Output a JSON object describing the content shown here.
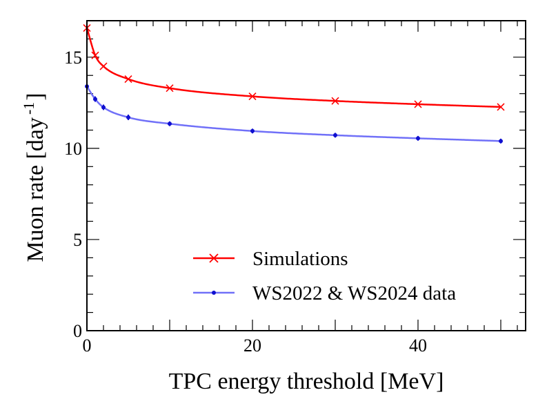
{
  "chart_data": {
    "type": "line",
    "xlabel": "TPC energy threshold [MeV]",
    "ylabel": "Muon rate [day",
    "ylabel_sup": "-1",
    "ylabel_close": "]",
    "xlim": [
      0,
      53
    ],
    "ylim": [
      0,
      17
    ],
    "x_ticks": [
      0,
      20,
      40
    ],
    "y_ticks": [
      0,
      5,
      10,
      15
    ],
    "x_tick_labels": [
      "0",
      "20",
      "40"
    ],
    "y_tick_labels": [
      "0",
      "5",
      "10",
      "15"
    ],
    "grid": false,
    "legend_position": "bottom-right",
    "series": [
      {
        "name": "Simulations",
        "marker": "x",
        "color": "#ff0000",
        "x": [
          0,
          1,
          2,
          5,
          10,
          20,
          30,
          40,
          50
        ],
        "y": [
          16.6,
          15.1,
          14.5,
          13.8,
          13.3,
          12.85,
          12.6,
          12.42,
          12.27
        ]
      },
      {
        "name": "WS2022 & WS2024 data",
        "marker": "dot",
        "color": "#7070f8",
        "marker_color": "#1010d0",
        "x": [
          0,
          1,
          2,
          5,
          10,
          20,
          30,
          40,
          50
        ],
        "y": [
          13.4,
          12.7,
          12.25,
          11.7,
          11.35,
          10.95,
          10.72,
          10.55,
          10.4
        ],
        "yerr": [
          0.15,
          0.15,
          0.15,
          0.15,
          0.13,
          0.13,
          0.13,
          0.13,
          0.13
        ]
      }
    ]
  }
}
